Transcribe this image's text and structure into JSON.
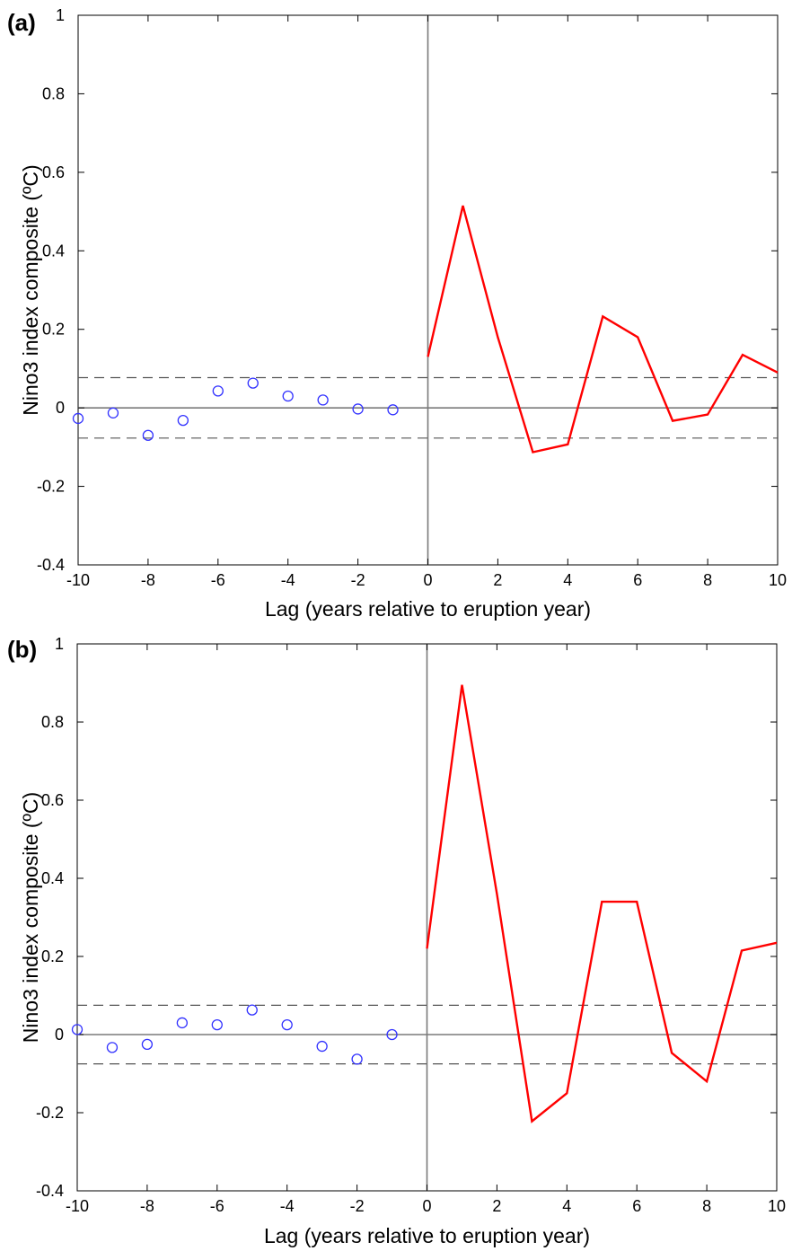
{
  "figure": {
    "panels": [
      "(a)",
      "(b)"
    ]
  },
  "chart_data": [
    {
      "type": "line",
      "panel_label": "(a)",
      "xlabel": "Lag (years relative to eruption year)",
      "ylabel": "Nino3 index composite (ºC)",
      "xlim": [
        -10,
        10
      ],
      "ylim": [
        -0.4,
        1
      ],
      "xticks": [
        -10,
        -8,
        -6,
        -4,
        -2,
        0,
        2,
        4,
        6,
        8,
        10
      ],
      "yticks": [
        -0.4,
        -0.2,
        0,
        0.2,
        0.4,
        0.6,
        0.8,
        1
      ],
      "ytick_labels": [
        "-0.4",
        "-0.2",
        "0",
        "0.2",
        "0.4",
        "0.6",
        "0.8",
        "1"
      ],
      "grid": false,
      "reference_lines": {
        "zero_line": 0,
        "vertical_line_x": 0,
        "dashed_bounds": [
          0.077,
          -0.077
        ]
      },
      "series": [
        {
          "style": "scatter",
          "color": "#3333ff",
          "marker": "open-circle",
          "x": [
            -10,
            -9,
            -8,
            -7,
            -6,
            -5,
            -4,
            -3,
            -2,
            -1
          ],
          "y": [
            -0.027,
            -0.013,
            -0.07,
            -0.032,
            0.043,
            0.063,
            0.03,
            0.02,
            -0.003,
            -0.005
          ]
        },
        {
          "style": "line",
          "color": "#ff0000",
          "x": [
            0,
            1,
            2,
            3,
            4,
            5,
            6,
            7,
            8,
            9,
            10
          ],
          "y": [
            0.13,
            0.515,
            0.18,
            -0.113,
            -0.093,
            0.233,
            0.18,
            -0.033,
            -0.017,
            0.135,
            0.09
          ]
        }
      ]
    },
    {
      "type": "line",
      "panel_label": "(b)",
      "xlabel": "Lag (years relative to eruption year)",
      "ylabel": "Nino3 index composite (ºC)",
      "xlim": [
        -10,
        10
      ],
      "ylim": [
        -0.4,
        1
      ],
      "xticks": [
        -10,
        -8,
        -6,
        -4,
        -2,
        0,
        2,
        4,
        6,
        8,
        10
      ],
      "yticks": [
        -0.4,
        -0.2,
        0,
        0.2,
        0.4,
        0.6,
        0.8,
        1
      ],
      "ytick_labels": [
        "-0.4",
        "-0.2",
        "0",
        "0.2",
        "0.4",
        "0.6",
        "0.8",
        "1"
      ],
      "grid": false,
      "reference_lines": {
        "zero_line": 0,
        "vertical_line_x": 0,
        "dashed_bounds": [
          0.075,
          -0.075
        ]
      },
      "series": [
        {
          "style": "scatter",
          "color": "#3333ff",
          "marker": "open-circle",
          "x": [
            -10,
            -9,
            -8,
            -7,
            -6,
            -5,
            -4,
            -3,
            -2,
            -1
          ],
          "y": [
            0.013,
            -0.033,
            -0.025,
            0.03,
            0.025,
            0.063,
            0.025,
            -0.03,
            -0.063,
            0
          ]
        },
        {
          "style": "line",
          "color": "#ff0000",
          "x": [
            0,
            1,
            2,
            3,
            4,
            5,
            6,
            7,
            8,
            9,
            10
          ],
          "y": [
            0.22,
            0.895,
            0.36,
            -0.222,
            -0.15,
            0.34,
            0.34,
            -0.047,
            -0.12,
            0.215,
            0.235
          ]
        }
      ]
    }
  ]
}
